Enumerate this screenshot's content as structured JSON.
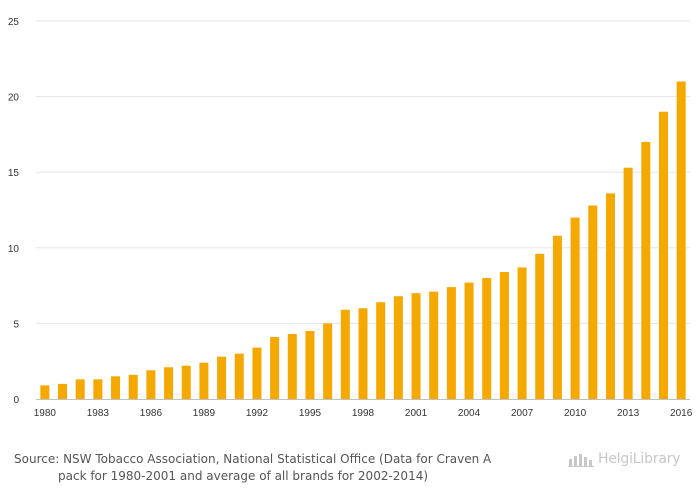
{
  "chart_data": {
    "type": "bar",
    "categories": [
      "1980",
      "1981",
      "1982",
      "1983",
      "1984",
      "1985",
      "1986",
      "1987",
      "1988",
      "1989",
      "1990",
      "1991",
      "1992",
      "1993",
      "1994",
      "1995",
      "1996",
      "1997",
      "1998",
      "1999",
      "2000",
      "2001",
      "2002",
      "2003",
      "2004",
      "2005",
      "2006",
      "2007",
      "2008",
      "2009",
      "2010",
      "2011",
      "2012",
      "2013",
      "2014",
      "2015",
      "2016"
    ],
    "values": [
      0.9,
      1.0,
      1.3,
      1.3,
      1.5,
      1.6,
      1.9,
      2.1,
      2.2,
      2.4,
      2.8,
      3.0,
      3.4,
      4.1,
      4.3,
      4.5,
      5.0,
      5.9,
      6.0,
      6.4,
      6.8,
      7.0,
      7.1,
      7.4,
      7.7,
      8.0,
      8.4,
      8.7,
      9.6,
      10.8,
      12.0,
      12.8,
      13.6,
      15.3,
      17.0,
      19.0,
      21.0
    ],
    "x_tick_labels": [
      "1980",
      "1983",
      "1986",
      "1989",
      "1992",
      "1995",
      "1998",
      "2001",
      "2004",
      "2007",
      "2010",
      "2013",
      "2016"
    ],
    "y_ticks": [
      0,
      5,
      10,
      15,
      20,
      25
    ],
    "ylim": [
      0,
      25
    ],
    "grid": true,
    "bar_color": "#f5a800",
    "title": "",
    "xlabel": "",
    "ylabel": ""
  },
  "footer": {
    "source_line1": "Source: NSW Tobacco Association, National Statistical Office (Data for Craven A",
    "source_line2": "pack for 1980-2001 and average of all brands for 2002-2014)",
    "brand": "HelgiLibrary",
    "brand_icon": "helgi-library-logo-icon"
  }
}
